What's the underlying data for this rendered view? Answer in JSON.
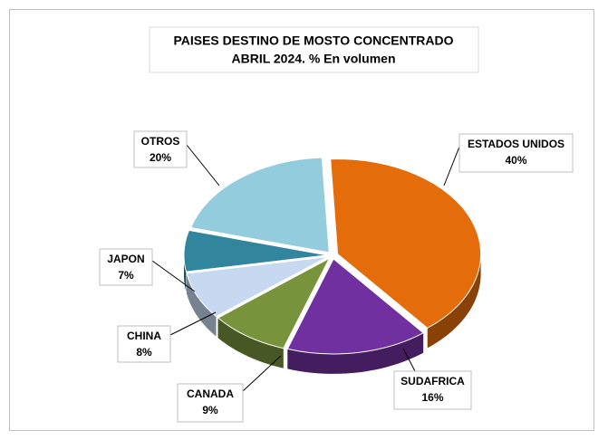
{
  "chart_data": {
    "type": "pie",
    "title": [
      "PAISES DESTINO DE MOSTO CONCENTRADO",
      "ABRIL 2024. % En volumen"
    ],
    "categories": [
      "ESTADOS UNIDOS",
      "SUDAFRICA",
      "CANADA",
      "CHINA",
      "JAPON",
      "OTROS"
    ],
    "values": [
      40,
      16,
      9,
      8,
      7,
      20
    ],
    "value_labels": [
      "40%",
      "16%",
      "9%",
      "8%",
      "7%",
      "20%"
    ],
    "colors": [
      "#e46c0a",
      "#7030a0",
      "#77933c",
      "#c6d9f1",
      "#31859c",
      "#93cddd"
    ]
  }
}
